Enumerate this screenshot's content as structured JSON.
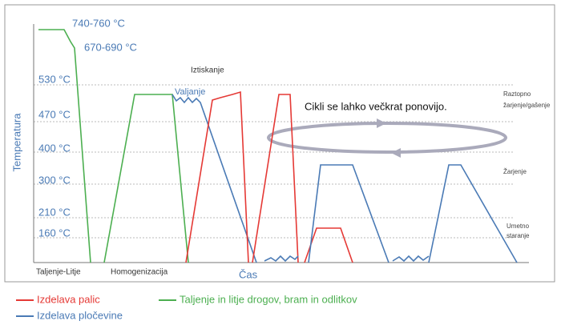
{
  "top_labels": [
    "740-760 °C",
    "670-690 °C"
  ],
  "y_labels": [
    "530 °C",
    "470 °C",
    "400 °C",
    "300 °C",
    "210 °C",
    "160 °C"
  ],
  "y_axis_title": "Temperatura",
  "x_axis_title": "Čas",
  "x_labels": [
    "Taljenje-Litje",
    "Homogenizacija"
  ],
  "annotations": {
    "extrusion": "Iztiskanje",
    "rolling": "Valjanje",
    "cycles": "Cikli se lahko večkrat ponovijo.",
    "solution": [
      "Raztopno",
      "žarjenje/gašenje"
    ],
    "annealing": "Žarjenje",
    "aging": [
      "Umetno",
      "staranje"
    ]
  },
  "legend": [
    "Izdelava palic",
    "Taljenje in litje drogov, bram in odlitkov",
    "Izdelava pločevine"
  ]
}
